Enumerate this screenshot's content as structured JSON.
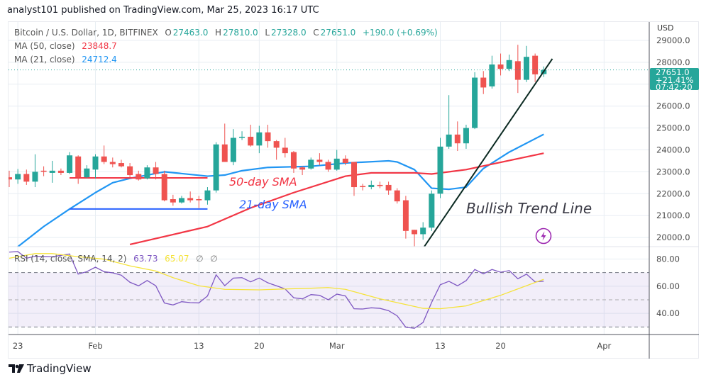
{
  "header": {
    "published": "analyst101 published on TradingView.com, Mar 25, 2023 16:17 UTC"
  },
  "legend": {
    "symbol": "Bitcoin / U.S. Dollar, 1D, BITFINEX",
    "o_label": "O",
    "o_value": "27463.0",
    "h_label": "H",
    "h_value": "27810.0",
    "l_label": "L",
    "l_value": "27328.0",
    "c_label": "C",
    "c_value": "27651.0",
    "change": "+190.0 (+0.69%)",
    "ma50_label": "MA (50, close)",
    "ma50_value": "23848.7",
    "ma21_label": "MA (21, close)",
    "ma21_value": "24712.4",
    "rsi_label": "RSI (14, close, SMA, 14, 2)",
    "rsi_value": "63.73",
    "rsi_sma_value": "65.07",
    "rsi_extra1": "∅",
    "rsi_extra2": "∅"
  },
  "price_axis": {
    "currency": "USD",
    "ticks": [
      "29000.0",
      "28000.0",
      "26000.0",
      "25000.0",
      "24000.0",
      "23000.0",
      "22000.0",
      "21000.0",
      "20000.0"
    ],
    "current_price": "27651.0",
    "current_change": "+21.41%",
    "countdown": "07:42:20"
  },
  "rsi_axis": {
    "ticks": [
      "80.00",
      "60.00",
      "40.00"
    ]
  },
  "time_axis": {
    "ticks": [
      {
        "label": "23",
        "date": "2023-01-23"
      },
      {
        "label": "Feb",
        "date": "2023-02-01"
      },
      {
        "label": "13",
        "date": "2023-02-13"
      },
      {
        "label": "20",
        "date": "2023-02-20"
      },
      {
        "label": "Mar",
        "date": "2023-03-01"
      },
      {
        "label": "13",
        "date": "2023-03-13"
      },
      {
        "label": "20",
        "date": "2023-03-20"
      },
      {
        "label": "Apr",
        "date": "2023-04-01"
      }
    ]
  },
  "annotations": {
    "sma50_text": "50-day SMA",
    "sma21_text": "21-day SMA",
    "trend_text": "Bullish Trend Line",
    "lightning_icon": "lightning-icon"
  },
  "colors": {
    "up": "#26a69a",
    "down": "#ef5350",
    "ma50": "#f23645",
    "ma21": "#2196f3",
    "rsi": "#7e57c2",
    "rsi_sma": "#f5e33b",
    "trend": "#0b2a22",
    "grid": "#e8eef3",
    "band": "#7e57c2"
  },
  "footer": {
    "logo_text": "TradingView"
  },
  "chart_data": {
    "type": "candlestick",
    "title": "Bitcoin / U.S. Dollar, 1D, BITFINEX",
    "price_range": [
      19500,
      29300
    ],
    "candles_ohlc": [
      [
        "2023-01-22",
        22750,
        23050,
        22300,
        22650
      ],
      [
        "2023-01-23",
        22650,
        23130,
        22450,
        22900
      ],
      [
        "2023-01-24",
        22900,
        23100,
        22400,
        22550
      ],
      [
        "2023-01-25",
        22550,
        23800,
        22300,
        23000
      ],
      [
        "2023-01-26",
        23050,
        23250,
        22800,
        23000
      ],
      [
        "2023-01-27",
        22950,
        23500,
        22500,
        23050
      ],
      [
        "2023-01-28",
        23050,
        23150,
        22850,
        22950
      ],
      [
        "2023-01-29",
        22950,
        23900,
        22900,
        23750
      ],
      [
        "2023-01-30",
        23700,
        23750,
        22450,
        22750
      ],
      [
        "2023-01-31",
        22750,
        23300,
        22700,
        23150
      ],
      [
        "2023-02-01",
        23100,
        23800,
        22700,
        23700
      ],
      [
        "2023-02-02",
        23700,
        24200,
        23350,
        23450
      ],
      [
        "2023-02-03",
        23450,
        23650,
        23200,
        23350
      ],
      [
        "2023-02-04",
        23400,
        23550,
        23200,
        23250
      ],
      [
        "2023-02-05",
        23250,
        23400,
        22750,
        22850
      ],
      [
        "2023-02-06",
        22900,
        23050,
        22600,
        22650
      ],
      [
        "2023-02-07",
        22700,
        23300,
        22650,
        23200
      ],
      [
        "2023-02-08",
        23200,
        23450,
        22650,
        22900
      ],
      [
        "2023-02-09",
        22900,
        23050,
        21650,
        21700
      ],
      [
        "2023-02-10",
        21750,
        21950,
        21450,
        21600
      ],
      [
        "2023-02-11",
        21600,
        21900,
        21550,
        21800
      ],
      [
        "2023-02-12",
        21800,
        22100,
        21600,
        21700
      ],
      [
        "2023-02-13",
        21750,
        21900,
        21350,
        21700
      ],
      [
        "2023-02-14",
        21700,
        22300,
        21500,
        22150
      ],
      [
        "2023-02-15",
        22150,
        24350,
        22050,
        24250
      ],
      [
        "2023-02-16",
        24250,
        25200,
        23450,
        23450
      ],
      [
        "2023-02-17",
        23450,
        24950,
        23300,
        24550
      ],
      [
        "2023-02-18",
        24550,
        24850,
        24450,
        24600
      ],
      [
        "2023-02-19",
        24600,
        25150,
        24150,
        24200
      ],
      [
        "2023-02-20",
        24200,
        25100,
        23850,
        24800
      ],
      [
        "2023-02-21",
        24800,
        25150,
        24100,
        24400
      ],
      [
        "2023-02-22",
        24400,
        24450,
        23550,
        24100
      ],
      [
        "2023-02-23",
        24100,
        24550,
        23650,
        23850
      ],
      [
        "2023-02-24",
        23900,
        23950,
        22950,
        23150
      ],
      [
        "2023-02-25",
        23200,
        23250,
        22850,
        23100
      ],
      [
        "2023-02-26",
        23150,
        23650,
        23100,
        23550
      ],
      [
        "2023-02-27",
        23550,
        23850,
        23300,
        23450
      ],
      [
        "2023-02-28",
        23450,
        23550,
        23000,
        23100
      ],
      [
        "2023-03-01",
        23100,
        24000,
        23050,
        23600
      ],
      [
        "2023-03-02",
        23600,
        23750,
        23300,
        23400
      ],
      [
        "2023-03-03",
        23450,
        23450,
        21900,
        22300
      ],
      [
        "2023-03-04",
        22350,
        22450,
        22150,
        22300
      ],
      [
        "2023-03-05",
        22300,
        22600,
        22200,
        22400
      ],
      [
        "2023-03-06",
        22400,
        22550,
        22250,
        22350
      ],
      [
        "2023-03-07",
        22400,
        22550,
        21950,
        22150
      ],
      [
        "2023-03-08",
        22150,
        22250,
        21550,
        21650
      ],
      [
        "2023-03-09",
        21700,
        21900,
        19950,
        20300
      ],
      [
        "2023-03-10",
        20350,
        20350,
        19600,
        20150
      ],
      [
        "2023-03-11",
        20150,
        20700,
        19900,
        20450
      ],
      [
        "2023-03-12",
        20450,
        22150,
        20300,
        22000
      ],
      [
        "2023-03-13",
        22000,
        24550,
        21800,
        24150
      ],
      [
        "2023-03-14",
        24150,
        26500,
        24050,
        24700
      ],
      [
        "2023-03-15",
        24700,
        25300,
        23950,
        24300
      ],
      [
        "2023-03-16",
        24300,
        25150,
        24050,
        25000
      ],
      [
        "2023-03-17",
        25000,
        27550,
        24950,
        27300
      ],
      [
        "2023-03-18",
        27300,
        27600,
        26550,
        26850
      ],
      [
        "2023-03-19",
        26900,
        28300,
        26800,
        27900
      ],
      [
        "2023-03-20",
        27900,
        28400,
        27400,
        27700
      ],
      [
        "2023-03-21",
        27700,
        28350,
        27600,
        28100
      ],
      [
        "2023-03-22",
        28050,
        28800,
        26600,
        27200
      ],
      [
        "2023-03-23",
        27200,
        28750,
        27100,
        28250
      ],
      [
        "2023-03-24",
        28300,
        28400,
        27100,
        27450
      ],
      [
        "2023-03-25",
        27463,
        27810,
        27328,
        27651
      ]
    ],
    "ma50": [
      [
        "2023-02-05",
        19680
      ],
      [
        "2023-02-14",
        20500
      ],
      [
        "2023-02-19",
        21350
      ],
      [
        "2023-02-24",
        22050
      ],
      [
        "2023-03-02",
        22800
      ],
      [
        "2023-03-05",
        22950
      ],
      [
        "2023-03-10",
        22950
      ],
      [
        "2023-03-12",
        22900
      ],
      [
        "2023-03-16",
        23100
      ],
      [
        "2023-03-25",
        23848.7
      ]
    ],
    "ma21": [
      [
        "2023-01-23",
        19580
      ],
      [
        "2023-01-26",
        20500
      ],
      [
        "2023-01-29",
        21300
      ],
      [
        "2023-02-01",
        22050
      ],
      [
        "2023-02-03",
        22500
      ],
      [
        "2023-02-05",
        22700
      ],
      [
        "2023-02-09",
        23000
      ],
      [
        "2023-02-14",
        22800
      ],
      [
        "2023-02-16",
        22850
      ],
      [
        "2023-02-18",
        23050
      ],
      [
        "2023-02-21",
        23200
      ],
      [
        "2023-02-26",
        23250
      ],
      [
        "2023-03-02",
        23400
      ],
      [
        "2023-03-07",
        23500
      ],
      [
        "2023-03-08",
        23450
      ],
      [
        "2023-03-10",
        23100
      ],
      [
        "2023-03-12",
        22250
      ],
      [
        "2023-03-14",
        22200
      ],
      [
        "2023-03-16",
        22300
      ],
      [
        "2023-03-18",
        23150
      ],
      [
        "2023-03-21",
        23900
      ],
      [
        "2023-03-25",
        24712.4
      ]
    ],
    "sma50_hline": {
      "from": "2023-01-29",
      "to": "2023-02-14",
      "price": 22720
    },
    "sma21_hline": {
      "from": "2023-01-29",
      "to": "2023-02-14",
      "price": 21300
    },
    "trend_line": {
      "from": [
        "2023-03-11",
        19500
      ],
      "to": [
        "2023-03-26",
        28160
      ]
    },
    "last_price": 27651,
    "rsi": {
      "range": [
        20,
        90
      ],
      "upper_band": 70,
      "middle": 50,
      "lower_band": 30,
      "start": "2023-01-22",
      "values": [
        85.1,
        85.5,
        80.6,
        82,
        81.8,
        81.7,
        82.7,
        83.7,
        68.9,
        70.7,
        74,
        70.7,
        69.8,
        68.1,
        62.9,
        60.3,
        64.2,
        60.3,
        47.6,
        46.2,
        48.6,
        47.9,
        47.7,
        52.8,
        68.4,
        60.4,
        66,
        66.3,
        63.2,
        66,
        62.5,
        60.3,
        58,
        51.5,
        50.7,
        53.8,
        53.3,
        50,
        54.2,
        52.8,
        43.4,
        43.2,
        44.1,
        43.7,
        42,
        38.2,
        29.8,
        29,
        33.3,
        48.1,
        61.1,
        63.6,
        60.3,
        64.1,
        72.3,
        69.1,
        72.3,
        70.3,
        71.5,
        65.5,
        68.9,
        63.2,
        63.73
      ],
      "sma": [
        [
          "2023-01-22",
          80.6
        ],
        [
          "2023-01-25",
          84
        ],
        [
          "2023-01-27",
          84
        ],
        [
          "2023-01-30",
          81.7
        ],
        [
          "2023-02-02",
          79.9
        ],
        [
          "2023-02-05",
          75
        ],
        [
          "2023-02-08",
          71.2
        ],
        [
          "2023-02-10",
          66.3
        ],
        [
          "2023-02-13",
          60.3
        ],
        [
          "2023-02-16",
          57.7
        ],
        [
          "2023-02-20",
          57.3
        ],
        [
          "2023-02-23",
          58
        ],
        [
          "2023-02-26",
          58.5
        ],
        [
          "2023-02-28",
          59
        ],
        [
          "2023-03-02",
          57.7
        ],
        [
          "2023-03-06",
          50.7
        ],
        [
          "2023-03-11",
          43.7
        ],
        [
          "2023-03-13",
          43.4
        ],
        [
          "2023-03-16",
          45.5
        ],
        [
          "2023-03-20",
          53.3
        ],
        [
          "2023-03-22",
          58
        ],
        [
          "2023-03-25",
          65.07
        ]
      ]
    }
  }
}
